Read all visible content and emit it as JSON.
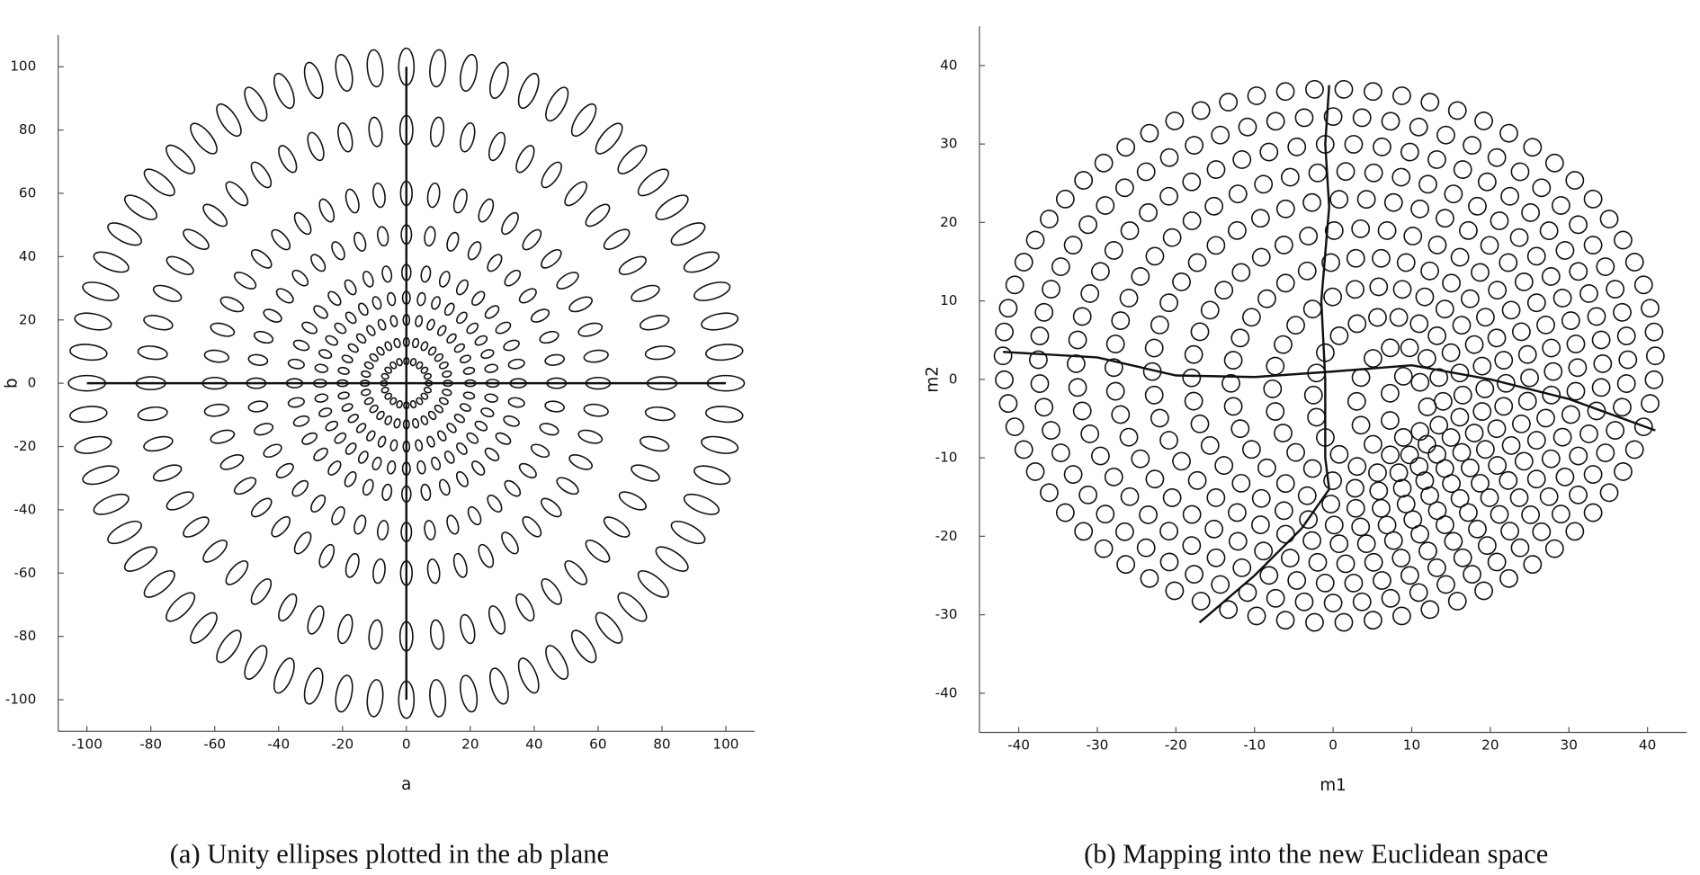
{
  "chart_data": [
    {
      "type": "ellipse-rings",
      "caption": "(a) Unity ellipses plotted in the ab plane",
      "xlabel": "a",
      "ylabel": "b",
      "xlim": [
        -109,
        109
      ],
      "ylim": [
        -110,
        110
      ],
      "xticks": [
        -100,
        -80,
        -60,
        -40,
        -20,
        0,
        20,
        40,
        60,
        80,
        100
      ],
      "yticks": [
        -100,
        -80,
        -60,
        -40,
        -20,
        0,
        20,
        40,
        60,
        80,
        100
      ],
      "color": "#111111",
      "rings": [
        {
          "cx": 0,
          "cy": 0,
          "rx": 100,
          "ry": 100,
          "n": 64,
          "radial": 5.8,
          "tangential": 2.4
        },
        {
          "cx": 0,
          "cy": 0,
          "rx": 80,
          "ry": 80,
          "n": 52,
          "radial": 4.6,
          "tangential": 2.0
        },
        {
          "cx": 0,
          "cy": 0,
          "rx": 60,
          "ry": 60,
          "n": 44,
          "radial": 3.8,
          "tangential": 1.8
        },
        {
          "cx": 0,
          "cy": 0,
          "rx": 47,
          "ry": 47,
          "n": 40,
          "radial": 3.0,
          "tangential": 1.6
        },
        {
          "cx": 0,
          "cy": 0,
          "rx": 35,
          "ry": 35,
          "n": 36,
          "radial": 2.5,
          "tangential": 1.4
        },
        {
          "cx": 0,
          "cy": 0,
          "rx": 27,
          "ry": 27,
          "n": 36,
          "radial": 2.0,
          "tangential": 1.2
        },
        {
          "cx": 0,
          "cy": 0,
          "rx": 20,
          "ry": 20,
          "n": 32,
          "radial": 1.7,
          "tangential": 1.0
        },
        {
          "cx": 0,
          "cy": 0,
          "rx": 13,
          "ry": 13,
          "n": 28,
          "radial": 1.4,
          "tangential": 0.9
        },
        {
          "cx": 0,
          "cy": 0,
          "rx": 7,
          "ry": 7,
          "n": 20,
          "radial": 1.1,
          "tangential": 0.8
        }
      ],
      "lines": [
        {
          "x": [
            -100,
            100
          ],
          "y": [
            0,
            0
          ]
        },
        {
          "x": [
            0,
            0
          ],
          "y": [
            100,
            -100
          ]
        }
      ]
    },
    {
      "type": "ellipse-rings",
      "caption": "(b) Mapping into the new Euclidean space",
      "xlabel": "m1",
      "ylabel": "m2",
      "xlim": [
        -45,
        45
      ],
      "ylim": [
        -45,
        45
      ],
      "xticks": [
        -40,
        -30,
        -20,
        -10,
        0,
        10,
        20,
        30,
        40
      ],
      "yticks": [
        -40,
        -30,
        -20,
        -10,
        0,
        10,
        20,
        30,
        40
      ],
      "color": "#111111",
      "rings": [
        {
          "cx": -0.5,
          "cy": 3,
          "rx": 41.5,
          "ry": 34,
          "n": 70,
          "radial": 1.1,
          "tangential": 1.1
        },
        {
          "cx": 0,
          "cy": 2.5,
          "rx": 37.5,
          "ry": 31,
          "n": 64,
          "radial": 1.1,
          "tangential": 1.1
        },
        {
          "cx": 0.8,
          "cy": 2,
          "rx": 33.5,
          "ry": 28,
          "n": 58,
          "radial": 1.1,
          "tangential": 1.1
        },
        {
          "cx": 1.6,
          "cy": 1.5,
          "rx": 29.5,
          "ry": 25,
          "n": 52,
          "radial": 1.1,
          "tangential": 1.1
        },
        {
          "cx": 2.5,
          "cy": 1,
          "rx": 25.5,
          "ry": 22,
          "n": 46,
          "radial": 1.1,
          "tangential": 1.1
        },
        {
          "cx": 3.5,
          "cy": 0.2,
          "rx": 21.5,
          "ry": 19,
          "n": 40,
          "radial": 1.1,
          "tangential": 1.1
        },
        {
          "cx": 4.5,
          "cy": -0.5,
          "rx": 17.5,
          "ry": 16,
          "n": 34,
          "radial": 1.1,
          "tangential": 1.1
        },
        {
          "cx": 5.8,
          "cy": -1.2,
          "rx": 13.5,
          "ry": 13,
          "n": 28,
          "radial": 1.1,
          "tangential": 1.1
        },
        {
          "cx": 7,
          "cy": -2,
          "rx": 9.5,
          "ry": 10,
          "n": 22,
          "radial": 1.1,
          "tangential": 1.1
        },
        {
          "cx": 8.5,
          "cy": -2.8,
          "rx": 5.5,
          "ry": 7,
          "n": 14,
          "radial": 1.1,
          "tangential": 1.1
        },
        {
          "cx": 9.5,
          "cy": -3.5,
          "rx": 2.5,
          "ry": 4,
          "n": 7,
          "radial": 1.1,
          "tangential": 1.1
        }
      ],
      "lines": [
        {
          "x": [
            -42,
            -30,
            -20,
            -10,
            0,
            10,
            20,
            30,
            41
          ],
          "y": [
            3.5,
            2.8,
            0.5,
            0.3,
            1,
            1.8,
            0,
            -2.5,
            -6.5
          ]
        },
        {
          "x": [
            -0.5,
            -1,
            -0.5,
            -1.5,
            -1,
            -1,
            -0.5,
            -4,
            -10,
            -17
          ],
          "y": [
            37.5,
            30,
            22,
            10,
            0,
            -10,
            -14,
            -19,
            -25,
            -31
          ]
        }
      ]
    }
  ]
}
